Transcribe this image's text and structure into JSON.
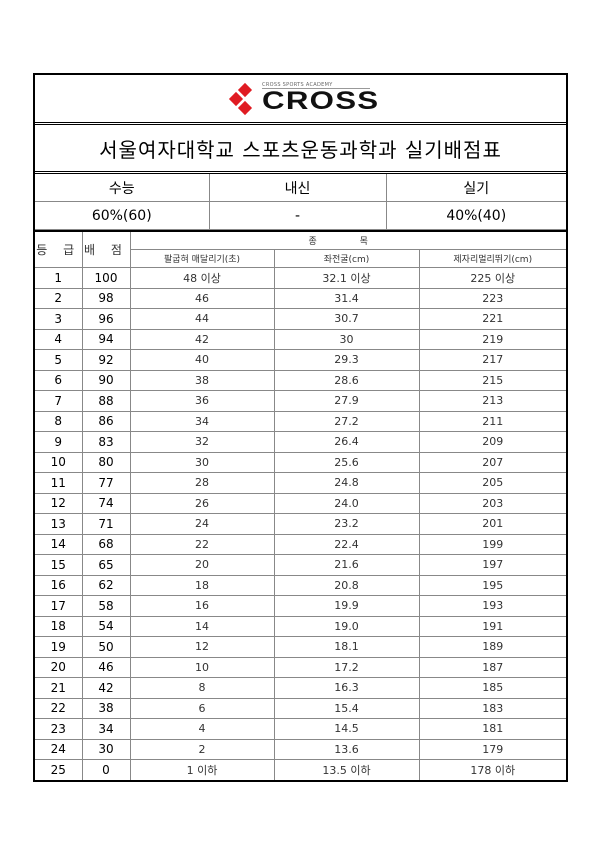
{
  "logo": {
    "tagline": "CROSS SPORTS ACADEMY",
    "name": "CROSS",
    "color": "#e01b22"
  },
  "title": "서울여자대학교 스포츠운동과학과 실기배점표",
  "ratio": {
    "headers": [
      "수능",
      "내신",
      "실기"
    ],
    "values": [
      "60%(60)",
      "-",
      "40%(40)"
    ]
  },
  "table": {
    "grade_header": "등 급",
    "score_header": "배 점",
    "events_header": "종 목",
    "events": [
      "팔굽혀 매달리기(초)",
      "좌전굴(cm)",
      "제자리멀리뛰기(cm)"
    ],
    "rows": [
      [
        "1",
        "100",
        "48 이상",
        "32.1 이상",
        "225 이상"
      ],
      [
        "2",
        "98",
        "46",
        "31.4",
        "223"
      ],
      [
        "3",
        "96",
        "44",
        "30.7",
        "221"
      ],
      [
        "4",
        "94",
        "42",
        "30",
        "219"
      ],
      [
        "5",
        "92",
        "40",
        "29.3",
        "217"
      ],
      [
        "6",
        "90",
        "38",
        "28.6",
        "215"
      ],
      [
        "7",
        "88",
        "36",
        "27.9",
        "213"
      ],
      [
        "8",
        "86",
        "34",
        "27.2",
        "211"
      ],
      [
        "9",
        "83",
        "32",
        "26.4",
        "209"
      ],
      [
        "10",
        "80",
        "30",
        "25.6",
        "207"
      ],
      [
        "11",
        "77",
        "28",
        "24.8",
        "205"
      ],
      [
        "12",
        "74",
        "26",
        "24.0",
        "203"
      ],
      [
        "13",
        "71",
        "24",
        "23.2",
        "201"
      ],
      [
        "14",
        "68",
        "22",
        "22.4",
        "199"
      ],
      [
        "15",
        "65",
        "20",
        "21.6",
        "197"
      ],
      [
        "16",
        "62",
        "18",
        "20.8",
        "195"
      ],
      [
        "17",
        "58",
        "16",
        "19.9",
        "193"
      ],
      [
        "18",
        "54",
        "14",
        "19.0",
        "191"
      ],
      [
        "19",
        "50",
        "12",
        "18.1",
        "189"
      ],
      [
        "20",
        "46",
        "10",
        "17.2",
        "187"
      ],
      [
        "21",
        "42",
        "8",
        "16.3",
        "185"
      ],
      [
        "22",
        "38",
        "6",
        "15.4",
        "183"
      ],
      [
        "23",
        "34",
        "4",
        "14.5",
        "181"
      ],
      [
        "24",
        "30",
        "2",
        "13.6",
        "179"
      ],
      [
        "25",
        "0",
        "1 이하",
        "13.5 이하",
        "178 이하"
      ]
    ]
  }
}
